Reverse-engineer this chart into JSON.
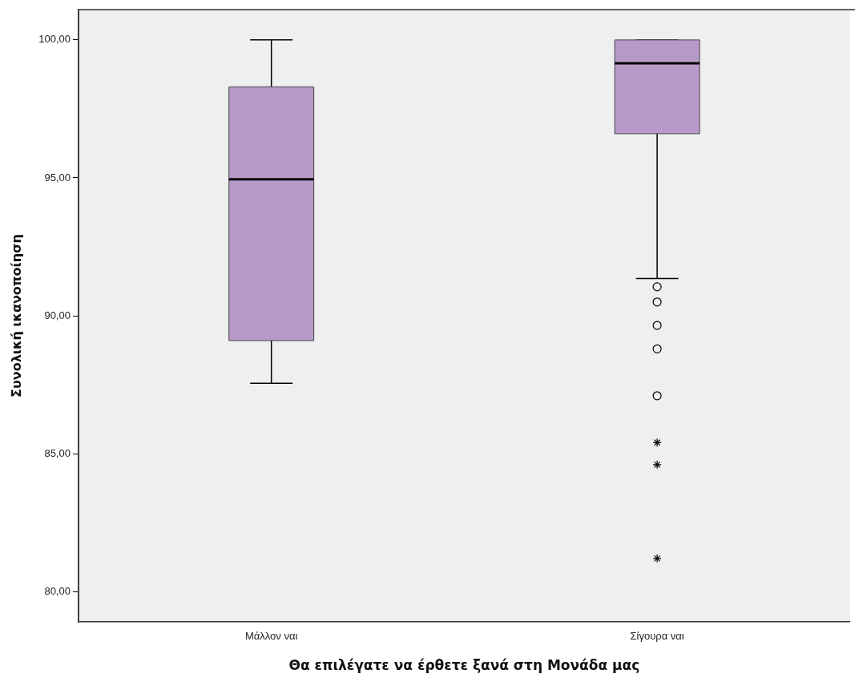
{
  "chart_data": {
    "type": "box",
    "xlabel": "Θα επιλέγατε να έρθετε ξανά στη Μονάδα μας",
    "ylabel": "Συνολική ικανοποίηση",
    "categories": [
      "Μάλλον ναι",
      "Σίγουρα ναι"
    ],
    "color": "#b79ac8",
    "marker": "circle",
    "grid": false,
    "legend": false,
    "ylim": [
      78.9,
      101.1
    ],
    "yticks": [
      {
        "value": 80,
        "label": "80,00"
      },
      {
        "value": 85,
        "label": "85,00"
      },
      {
        "value": 90,
        "label": "90,00"
      },
      {
        "value": 95,
        "label": "95,00"
      },
      {
        "value": 100,
        "label": "100,00"
      }
    ],
    "boxes": [
      {
        "low": 87.55,
        "q1": 89.1,
        "median": 94.95,
        "q3": 98.3,
        "high": 100
      },
      {
        "low": 91.35,
        "q1": 96.6,
        "median": 99.15,
        "q3": 100,
        "high": 100,
        "outliers": [
          91.05,
          90.5,
          89.65,
          88.8,
          87.1
        ]
      }
    ],
    "series": [
      {
        "type": "scatter",
        "marker": "cross",
        "color": "#000000",
        "x": [
          "Σίγουρα ναι",
          "Σίγουρα ναι",
          "Σίγουρα ναι"
        ],
        "values": [
          85.4,
          84.6,
          81.2
        ]
      }
    ]
  }
}
